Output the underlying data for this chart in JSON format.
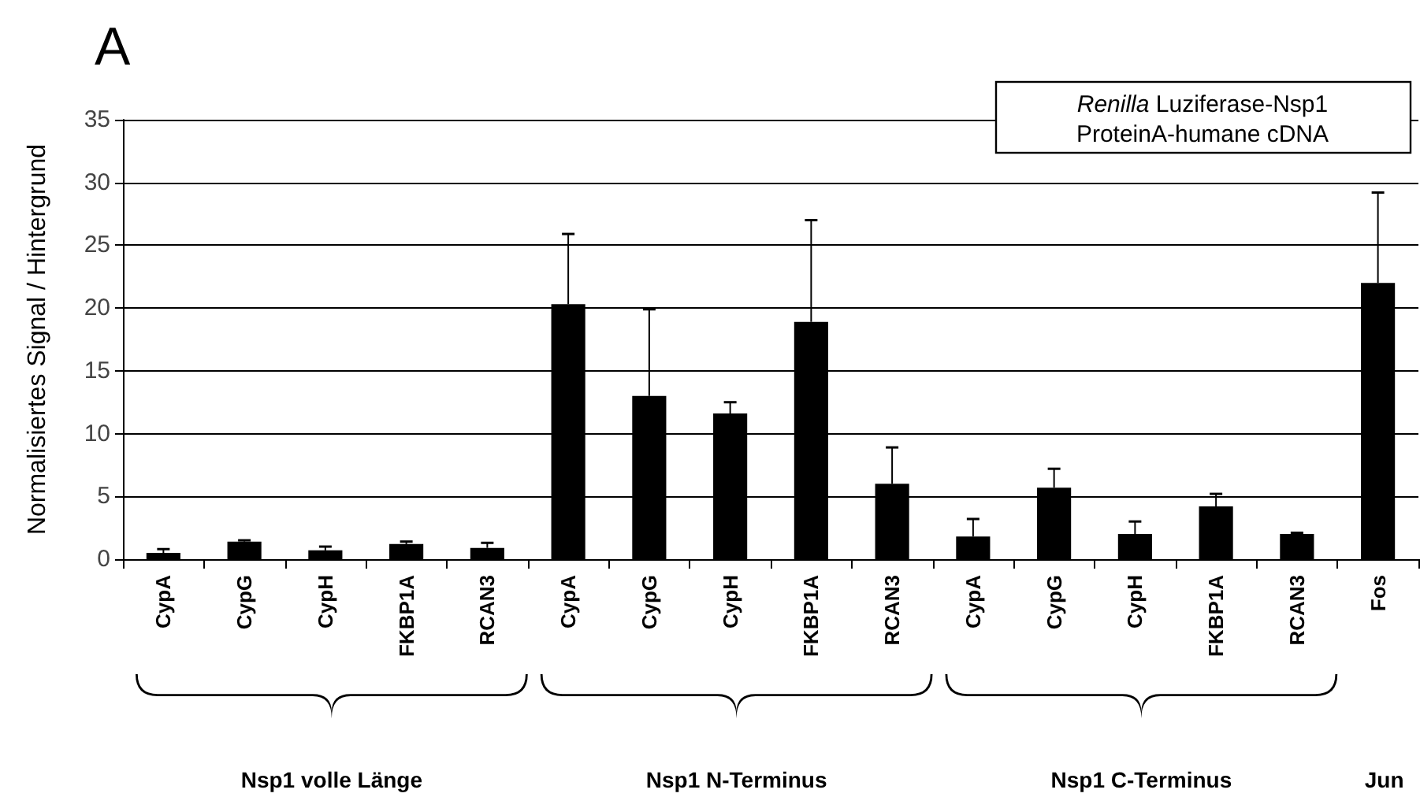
{
  "chart_data": {
    "type": "bar",
    "title": "A",
    "ylabel": "Normalisiertes Signal / Hintergrund",
    "categories": [
      "CypA",
      "CypG",
      "CypH",
      "FKBP1A",
      "RCAN3",
      "CypA",
      "CypG",
      "CypH",
      "FKBP1A",
      "RCAN3",
      "CypA",
      "CypG",
      "CypH",
      "FKBP1A",
      "RCAN3",
      "Fos"
    ],
    "values": [
      0.5,
      1.4,
      0.7,
      1.2,
      0.9,
      20.3,
      13.0,
      11.6,
      18.9,
      6.0,
      1.8,
      5.7,
      2.0,
      4.2,
      2.0,
      22.0
    ],
    "errors": [
      [
        0.5,
        0.8
      ],
      [
        1.4,
        1.5
      ],
      [
        0.7,
        1.0
      ],
      [
        1.2,
        1.4
      ],
      [
        0.9,
        1.3
      ],
      [
        20.3,
        25.9
      ],
      [
        13.0,
        19.9
      ],
      [
        11.6,
        12.5
      ],
      [
        18.9,
        27.0
      ],
      [
        6.0,
        8.9
      ],
      [
        1.8,
        3.2
      ],
      [
        5.7,
        7.2
      ],
      [
        2.0,
        3.0
      ],
      [
        4.2,
        5.2
      ],
      [
        2.0,
        2.1
      ],
      [
        22.0,
        29.2
      ]
    ],
    "color": "#000000",
    "ylim": [
      0,
      35
    ],
    "yticks": [
      0,
      5,
      10,
      15,
      20,
      25,
      30,
      35
    ],
    "grid": "y",
    "annotations": [
      "Renilla Luziferase-Nsp1\nProteinA-humane cDNA",
      "Nsp1 volle Länge",
      "Nsp1 N-Terminus",
      "Nsp1 C-Terminus",
      "Jun"
    ]
  }
}
